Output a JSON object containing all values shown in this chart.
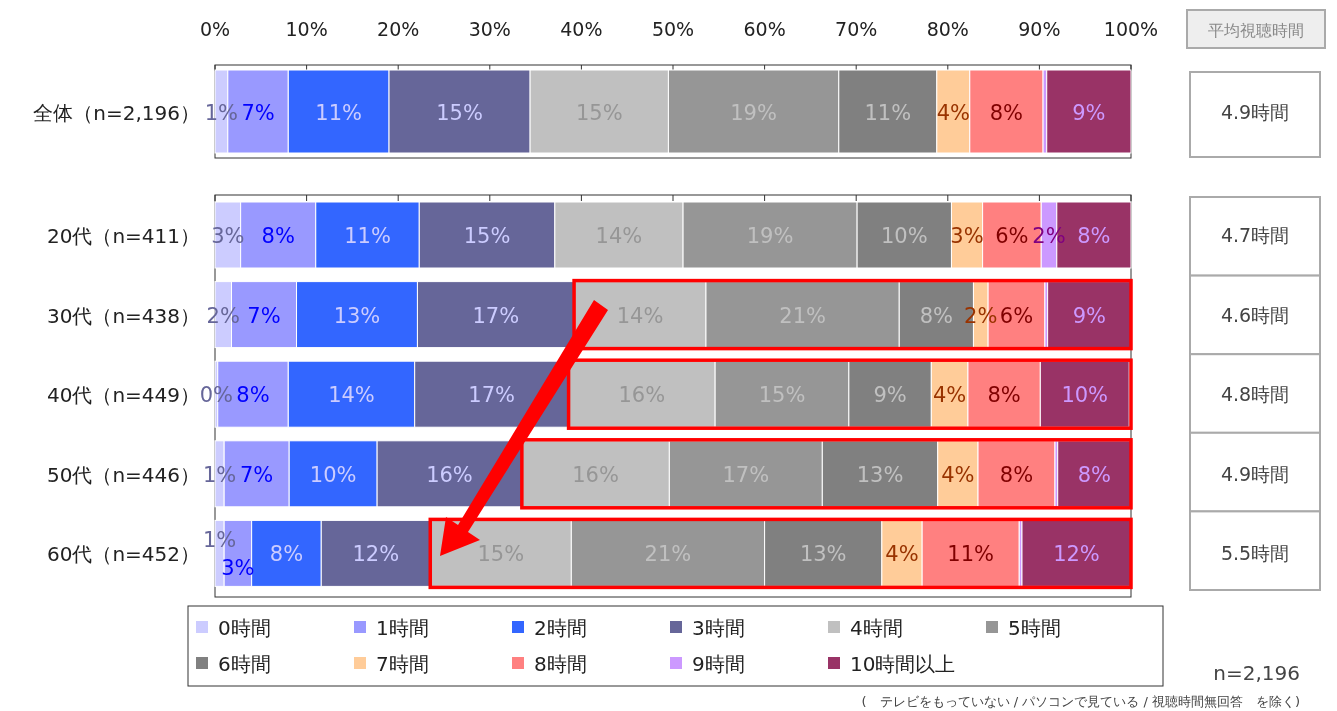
{
  "chart_data": {
    "type": "bar",
    "orientation": "horizontal",
    "stacked": true,
    "categories": [
      "全体（n=2,196）",
      "20代（n=411）",
      "30代（n=438）",
      "40代（n=449）",
      "50代（n=446）",
      "60代（n=452）"
    ],
    "xlim": [
      0,
      100
    ],
    "xticks": [
      {
        "value": 0,
        "label": "0%"
      },
      {
        "value": 10,
        "label": "10%"
      },
      {
        "value": 20,
        "label": "20%"
      },
      {
        "value": 30,
        "label": "30%"
      },
      {
        "value": 40,
        "label": "40%"
      },
      {
        "value": 50,
        "label": "50%"
      },
      {
        "value": 60,
        "label": "60%"
      },
      {
        "value": 70,
        "label": "70%"
      },
      {
        "value": 80,
        "label": "80%"
      },
      {
        "value": 90,
        "label": "90%"
      },
      {
        "value": 100,
        "label": "100%"
      }
    ],
    "series": [
      {
        "name": "0時間",
        "color": "#ccccff",
        "values": [
          1.4,
          2.8,
          1.8,
          0.3,
          1.0,
          1.0
        ],
        "value_labels": [
          "1%",
          "3%",
          "2%",
          "0%",
          "1%",
          "1%"
        ]
      },
      {
        "name": "1時間",
        "color": "#9999ff",
        "values": [
          6.6,
          8.2,
          7.1,
          7.7,
          7.1,
          3.0
        ],
        "value_labels": [
          "7%",
          "8%",
          "7%",
          "8%",
          "7%",
          "3%"
        ]
      },
      {
        "name": "2時間",
        "color": "#3366ff",
        "values": [
          11.0,
          11.3,
          13.2,
          13.8,
          9.6,
          7.6
        ],
        "value_labels": [
          "11%",
          "11%",
          "13%",
          "14%",
          "10%",
          "8%"
        ]
      },
      {
        "name": "3時間",
        "color": "#666699",
        "values": [
          15.4,
          14.8,
          17.1,
          16.8,
          15.8,
          11.9
        ],
        "value_labels": [
          "15%",
          "15%",
          "17%",
          "17%",
          "16%",
          "12%"
        ]
      },
      {
        "name": "4時間",
        "color": "#c0c0c0",
        "values": [
          15.1,
          14.0,
          14.4,
          16.0,
          16.1,
          15.4
        ],
        "value_labels": [
          "15%",
          "14%",
          "14%",
          "16%",
          "16%",
          "15%"
        ]
      },
      {
        "name": "5時間",
        "color": "#969696",
        "values": [
          18.6,
          19.0,
          21.1,
          14.6,
          16.7,
          21.1
        ],
        "value_labels": [
          "19%",
          "19%",
          "21%",
          "15%",
          "17%",
          "21%"
        ]
      },
      {
        "name": "6時間",
        "color": "#808080",
        "values": [
          10.7,
          10.3,
          8.1,
          9.0,
          12.6,
          12.8
        ],
        "value_labels": [
          "11%",
          "10%",
          "8%",
          "9%",
          "13%",
          "13%"
        ]
      },
      {
        "name": "7時間",
        "color": "#ffcc99",
        "values": [
          3.6,
          3.4,
          1.6,
          4.0,
          4.4,
          4.4
        ],
        "value_labels": [
          "4%",
          "3%",
          "2%",
          "4%",
          "4%",
          "4%"
        ]
      },
      {
        "name": "8時間",
        "color": "#ff8080",
        "values": [
          8.0,
          6.4,
          6.2,
          7.9,
          8.4,
          10.6
        ],
        "value_labels": [
          "8%",
          "6%",
          "6%",
          "8%",
          "8%",
          "11%"
        ]
      },
      {
        "name": "9時間",
        "color": "#cc99ff",
        "values": [
          0.4,
          1.7,
          0.3,
          null,
          0.3,
          0.3
        ],
        "value_labels": [
          null,
          "2%",
          null,
          null,
          null,
          null
        ]
      },
      {
        "name": "10時間以上",
        "color": "#993366",
        "values": [
          9.2,
          8.1,
          9.1,
          9.7,
          8.0,
          11.9
        ],
        "value_labels": [
          "9%",
          "8%",
          "9%",
          "10%",
          "8%",
          "12%"
        ]
      }
    ],
    "legend": "bottom",
    "annotations": [
      "平均視聴時間",
      "n=2,196",
      "(　テレビをもっていない / パソコンで見ている / 視聴時間無回答　を除く)",
      "4.9時間",
      "4.7時間",
      "4.6時間",
      "4.8時間",
      "4.9時間",
      "5.5時間"
    ]
  }
}
